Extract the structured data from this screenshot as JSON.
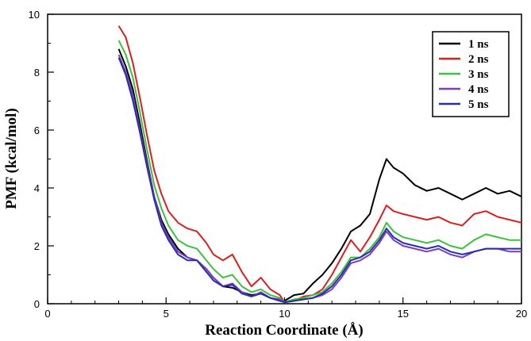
{
  "chart_data": {
    "type": "line",
    "title": "",
    "xlabel": "Reaction Coordinate (Å)",
    "ylabel": "PMF (kcal/mol)",
    "xlim": [
      0,
      20
    ],
    "ylim": [
      0,
      10
    ],
    "xticks": [
      0,
      5,
      10,
      15,
      20
    ],
    "yticks": [
      0,
      2,
      4,
      6,
      8,
      10
    ],
    "grid": false,
    "legend_position": "top-right",
    "series": [
      {
        "name": "1 ns",
        "color": "#000000",
        "x": [
          3.0,
          3.3,
          3.6,
          3.9,
          4.2,
          4.5,
          4.8,
          5.1,
          5.5,
          5.9,
          6.3,
          6.7,
          7.0,
          7.4,
          7.8,
          8.2,
          8.6,
          9.0,
          9.4,
          9.8,
          10.0,
          10.4,
          10.8,
          11.2,
          11.6,
          12.0,
          12.4,
          12.8,
          13.2,
          13.6,
          14.0,
          14.3,
          14.6,
          15.0,
          15.5,
          16.0,
          16.5,
          17.0,
          17.5,
          18.0,
          18.5,
          19.0,
          19.5,
          20.0
        ],
        "y": [
          8.8,
          8.2,
          7.4,
          6.2,
          4.9,
          3.7,
          2.9,
          2.4,
          1.9,
          1.6,
          1.5,
          1.2,
          0.9,
          0.6,
          0.55,
          0.4,
          0.3,
          0.35,
          0.2,
          0.1,
          0.1,
          0.3,
          0.35,
          0.7,
          1.0,
          1.4,
          1.9,
          2.5,
          2.7,
          3.1,
          4.3,
          5.0,
          4.7,
          4.5,
          4.1,
          3.9,
          4.0,
          3.8,
          3.6,
          3.8,
          4.0,
          3.8,
          3.9,
          3.7
        ]
      },
      {
        "name": "2 ns",
        "color": "#d92020",
        "x": [
          3.0,
          3.3,
          3.6,
          3.9,
          4.2,
          4.5,
          4.8,
          5.1,
          5.5,
          5.9,
          6.3,
          6.7,
          7.0,
          7.4,
          7.8,
          8.2,
          8.6,
          9.0,
          9.4,
          9.8,
          10.0,
          10.4,
          10.8,
          11.2,
          11.6,
          12.0,
          12.4,
          12.8,
          13.2,
          13.6,
          14.0,
          14.3,
          14.6,
          15.0,
          15.5,
          16.0,
          16.5,
          17.0,
          17.5,
          18.0,
          18.5,
          19.0,
          19.5,
          20.0
        ],
        "y": [
          9.6,
          9.2,
          8.3,
          7.1,
          5.8,
          4.6,
          3.8,
          3.2,
          2.8,
          2.6,
          2.5,
          2.1,
          1.7,
          1.5,
          1.7,
          1.1,
          0.6,
          0.9,
          0.5,
          0.3,
          0.05,
          0.1,
          0.25,
          0.3,
          0.5,
          1.0,
          1.6,
          2.2,
          1.8,
          2.3,
          2.9,
          3.4,
          3.2,
          3.1,
          3.0,
          2.9,
          3.0,
          2.8,
          2.7,
          3.1,
          3.2,
          3.0,
          2.9,
          2.8
        ]
      },
      {
        "name": "3 ns",
        "color": "#3cc23c",
        "x": [
          3.0,
          3.3,
          3.6,
          3.9,
          4.2,
          4.5,
          4.8,
          5.1,
          5.5,
          5.9,
          6.3,
          6.7,
          7.0,
          7.4,
          7.8,
          8.2,
          8.6,
          9.0,
          9.4,
          9.8,
          10.0,
          10.4,
          10.8,
          11.2,
          11.6,
          12.0,
          12.4,
          12.8,
          13.2,
          13.6,
          14.0,
          14.3,
          14.6,
          15.0,
          15.5,
          16.0,
          16.5,
          17.0,
          17.5,
          18.0,
          18.5,
          19.0,
          19.5,
          20.0
        ],
        "y": [
          9.1,
          8.6,
          7.8,
          6.6,
          5.3,
          4.1,
          3.3,
          2.7,
          2.2,
          2.0,
          1.9,
          1.5,
          1.2,
          0.9,
          1.0,
          0.6,
          0.4,
          0.5,
          0.3,
          0.2,
          0.05,
          0.15,
          0.2,
          0.3,
          0.4,
          0.7,
          1.1,
          1.6,
          1.6,
          1.9,
          2.3,
          2.8,
          2.5,
          2.3,
          2.2,
          2.1,
          2.2,
          2.0,
          1.9,
          2.2,
          2.4,
          2.3,
          2.2,
          2.2
        ]
      },
      {
        "name": "4 ns",
        "color": "#7b3cc8",
        "x": [
          3.0,
          3.3,
          3.6,
          3.9,
          4.2,
          4.5,
          4.8,
          5.1,
          5.5,
          5.9,
          6.3,
          6.7,
          7.0,
          7.4,
          7.8,
          8.2,
          8.6,
          9.0,
          9.4,
          9.8,
          10.0,
          10.4,
          10.8,
          11.2,
          11.6,
          12.0,
          12.4,
          12.8,
          13.2,
          13.6,
          14.0,
          14.3,
          14.6,
          15.0,
          15.5,
          16.0,
          16.5,
          17.0,
          17.5,
          18.0,
          18.5,
          19.0,
          19.5,
          20.0
        ],
        "y": [
          8.6,
          8.0,
          7.2,
          6.0,
          4.8,
          3.7,
          2.8,
          2.3,
          1.8,
          1.6,
          1.5,
          1.2,
          0.9,
          0.6,
          0.7,
          0.4,
          0.25,
          0.4,
          0.2,
          0.15,
          0.05,
          0.1,
          0.15,
          0.2,
          0.3,
          0.5,
          0.9,
          1.4,
          1.5,
          1.7,
          2.1,
          2.5,
          2.2,
          2.0,
          1.9,
          1.8,
          1.9,
          1.7,
          1.6,
          1.8,
          1.9,
          1.9,
          1.8,
          1.8
        ]
      },
      {
        "name": "5 ns",
        "color": "#2a2fa8",
        "x": [
          3.0,
          3.3,
          3.6,
          3.9,
          4.2,
          4.5,
          4.8,
          5.1,
          5.5,
          5.9,
          6.3,
          6.7,
          7.0,
          7.4,
          7.8,
          8.2,
          8.6,
          9.0,
          9.4,
          9.8,
          10.0,
          10.4,
          10.8,
          11.2,
          11.6,
          12.0,
          12.4,
          12.8,
          13.2,
          13.6,
          14.0,
          14.3,
          14.6,
          15.0,
          15.5,
          16.0,
          16.5,
          17.0,
          17.5,
          18.0,
          18.5,
          19.0,
          19.5,
          20.0
        ],
        "y": [
          8.5,
          7.9,
          7.0,
          5.9,
          4.7,
          3.6,
          2.7,
          2.2,
          1.7,
          1.5,
          1.5,
          1.1,
          0.8,
          0.6,
          0.65,
          0.35,
          0.25,
          0.35,
          0.2,
          0.1,
          0.05,
          0.1,
          0.15,
          0.2,
          0.35,
          0.6,
          1.0,
          1.5,
          1.6,
          1.8,
          2.2,
          2.6,
          2.3,
          2.1,
          2.0,
          1.9,
          2.0,
          1.8,
          1.7,
          1.8,
          1.9,
          1.9,
          1.9,
          1.9
        ]
      }
    ]
  }
}
